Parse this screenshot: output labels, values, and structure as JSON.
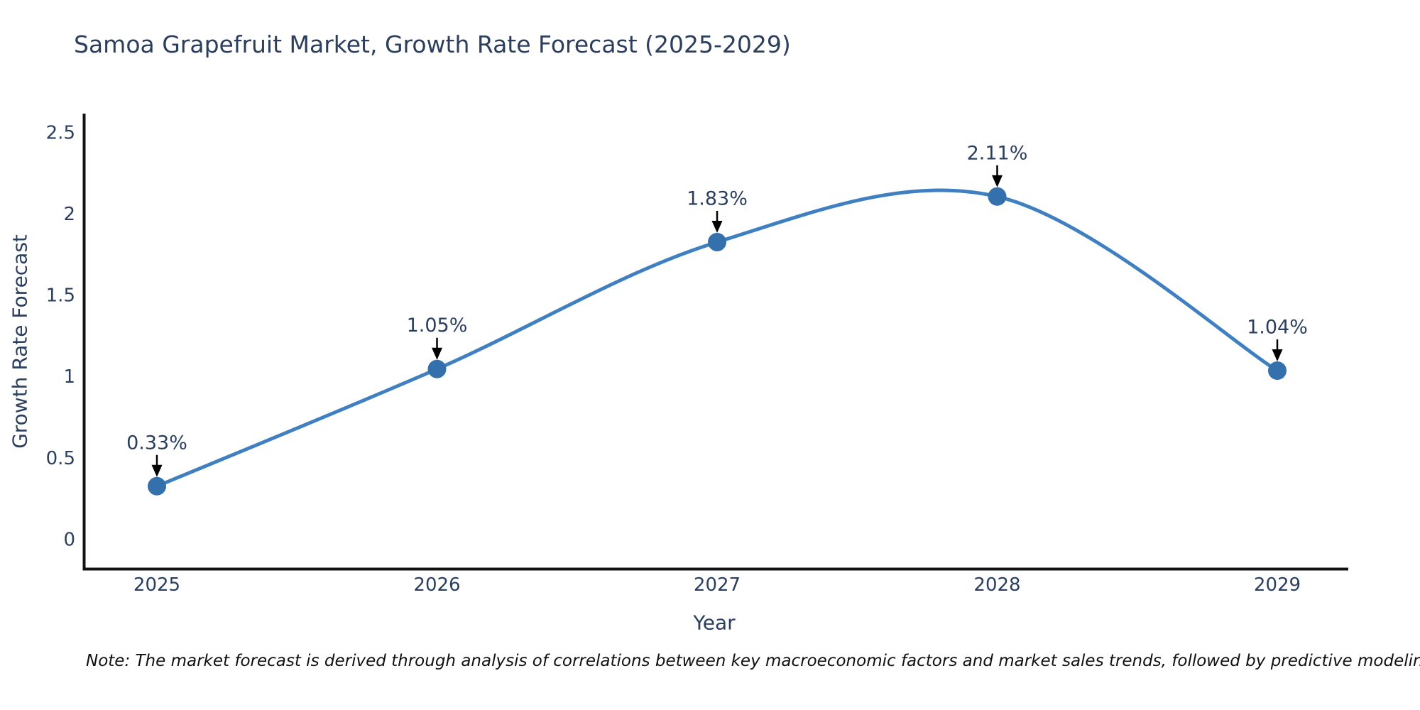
{
  "title": "Samoa Grapefruit Market, Growth Rate Forecast (2025-2029)",
  "note": "Note: The market forecast is derived through analysis of correlations between key macroeconomic factors and market sales trends, followed by predictive modeling to project future sales",
  "colors": {
    "title_text": "#2c3e5d",
    "tick_text": "#2a3f5f",
    "axis_line": "#111111",
    "series_line": "#4080c0",
    "marker_fill": "#3470ab",
    "annotation_text": "#2a3f5f",
    "arrow": "#000000",
    "note_text": "#111111",
    "background": "#ffffff"
  },
  "chart_data": {
    "type": "line",
    "title": "Samoa Grapefruit Market, Growth Rate Forecast (2025-2029)",
    "xlabel": "Year",
    "ylabel": "Growth Rate Forecast",
    "x": [
      2025,
      2026,
      2027,
      2028,
      2029
    ],
    "series": [
      {
        "name": "Growth Rate Forecast",
        "values": [
          0.33,
          1.05,
          1.83,
          2.11,
          1.04
        ],
        "point_labels": [
          "0.33%",
          "1.05%",
          "1.83%",
          "2.11%",
          "1.04%"
        ]
      }
    ],
    "yticks": [
      0,
      0.5,
      1,
      1.5,
      2,
      2.5
    ],
    "ylim": [
      -0.19,
      2.62
    ],
    "line_shape": "spline",
    "markers": true,
    "grid": false,
    "legend_position": "none",
    "annotations": "value labels with downward arrows above each point"
  }
}
